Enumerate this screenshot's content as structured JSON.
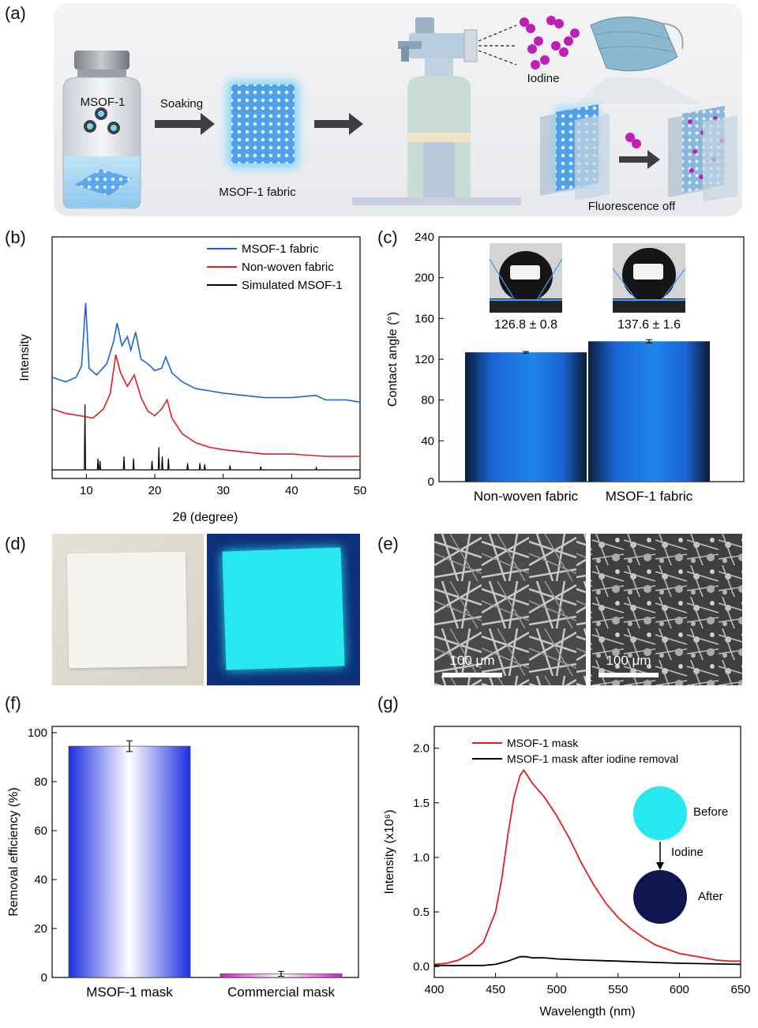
{
  "panel_labels": {
    "a": "(a)",
    "b": "(b)",
    "c": "(c)",
    "d": "(d)",
    "e": "(e)",
    "f": "(f)",
    "g": "(g)"
  },
  "colors": {
    "blue": "#1b64d6",
    "red": "#e02020",
    "black": "#000000",
    "cyan": "#27e8ee",
    "navy": "#0f1650",
    "magenta": "#c01fb5"
  },
  "panel_a": {
    "bottle_label": "MSOF-1",
    "step1": "Soaking",
    "fabric_label": "MSOF-1 fabric",
    "iodine_label": "Iodine",
    "result_label": "Fluorescence off"
  },
  "panel_d": {
    "left_desc": "Non-woven fabric under daylight",
    "right_desc": "MSOF-1 fabric under UV light"
  },
  "panel_e": {
    "scale_left": "100 μm",
    "scale_right": "100 μm"
  },
  "chart_data": [
    {
      "id": "b",
      "type": "line",
      "xlabel": "2θ (degree)",
      "ylabel": "Intensity",
      "xlim": [
        5,
        50
      ],
      "xticks": [
        10,
        20,
        30,
        40,
        50
      ],
      "series": [
        {
          "name": "MSOF-1 fabric",
          "color": "#1b64d6",
          "x": [
            5,
            7,
            8.5,
            9.3,
            9.9,
            10.4,
            11.5,
            13,
            14,
            14.5,
            15.2,
            16,
            16.5,
            17.2,
            18,
            19,
            20,
            21,
            21.6,
            22.5,
            24,
            26,
            28,
            30,
            33,
            36,
            40,
            43.5,
            45,
            48,
            50
          ],
          "y": [
            0.42,
            0.4,
            0.42,
            0.47,
            0.75,
            0.46,
            0.43,
            0.48,
            0.58,
            0.66,
            0.56,
            0.6,
            0.54,
            0.62,
            0.5,
            0.48,
            0.45,
            0.46,
            0.51,
            0.44,
            0.4,
            0.37,
            0.36,
            0.35,
            0.34,
            0.33,
            0.33,
            0.34,
            0.32,
            0.32,
            0.31
          ]
        },
        {
          "name": "Non-woven fabric",
          "color": "#e02020",
          "x": [
            5,
            7,
            9,
            11,
            12.5,
            13.5,
            14.3,
            15,
            16,
            17,
            18,
            19,
            20,
            21,
            21.8,
            22.5,
            24,
            26,
            28,
            30,
            33,
            36,
            40,
            45,
            50
          ],
          "y": [
            0.28,
            0.26,
            0.25,
            0.24,
            0.28,
            0.35,
            0.52,
            0.44,
            0.38,
            0.43,
            0.33,
            0.27,
            0.25,
            0.28,
            0.32,
            0.24,
            0.17,
            0.13,
            0.11,
            0.1,
            0.09,
            0.08,
            0.08,
            0.07,
            0.07
          ]
        }
      ],
      "simulated": {
        "name": "Simulated MSOF-1",
        "color": "#000000",
        "peaks": [
          [
            9.8,
            0.29
          ],
          [
            11.7,
            0.05
          ],
          [
            12.0,
            0.04
          ],
          [
            15.5,
            0.06
          ],
          [
            16.9,
            0.05
          ],
          [
            19.6,
            0.04
          ],
          [
            20.6,
            0.1
          ],
          [
            21.1,
            0.06
          ],
          [
            22.0,
            0.05
          ],
          [
            24.8,
            0.03
          ],
          [
            26.6,
            0.03
          ],
          [
            27.3,
            0.025
          ],
          [
            31.0,
            0.02
          ],
          [
            35.5,
            0.015
          ],
          [
            43.6,
            0.01
          ]
        ]
      },
      "legend": [
        "MSOF-1 fabric",
        "Non-woven fabric",
        "Simulated MSOF-1"
      ]
    },
    {
      "id": "c",
      "type": "bar",
      "ylabel": "Contact angle (°)",
      "ylim": [
        0,
        240
      ],
      "yticks": [
        0,
        40,
        80,
        120,
        160,
        200,
        240
      ],
      "categories": [
        "Non-woven fabric",
        "MSOF-1 fabric"
      ],
      "values": [
        126.8,
        137.6
      ],
      "errors": [
        0.8,
        1.6
      ],
      "annotations": [
        "126.8 ± 0.8",
        "137.6 ± 1.6"
      ]
    },
    {
      "id": "f",
      "type": "bar",
      "ylabel": "Removal efficiency (%)",
      "ylim": [
        0,
        100
      ],
      "yticks": [
        0,
        20,
        40,
        60,
        80,
        100
      ],
      "categories": [
        "MSOF-1 mask",
        "Commercial mask"
      ],
      "values": [
        94.5,
        1.5
      ],
      "errors": [
        2.2,
        1.0
      ]
    },
    {
      "id": "g",
      "type": "line",
      "xlabel": "Wavelength (nm)",
      "ylabel": "Intensity (x10⁶)",
      "xlim": [
        400,
        650
      ],
      "ylim": [
        -0.1,
        2.2
      ],
      "xticks": [
        400,
        450,
        500,
        550,
        600,
        650
      ],
      "yticks": [
        0.0,
        0.5,
        1.0,
        1.5,
        2.0
      ],
      "series": [
        {
          "name": "MSOF-1 mask",
          "color": "#e02020",
          "x": [
            400,
            410,
            420,
            430,
            440,
            450,
            455,
            460,
            465,
            470,
            473,
            480,
            490,
            500,
            510,
            520,
            530,
            540,
            550,
            560,
            570,
            580,
            590,
            600,
            610,
            620,
            630,
            640,
            650
          ],
          "y": [
            0.02,
            0.03,
            0.06,
            0.12,
            0.22,
            0.5,
            0.8,
            1.2,
            1.55,
            1.75,
            1.8,
            1.68,
            1.55,
            1.38,
            1.18,
            0.95,
            0.75,
            0.58,
            0.45,
            0.35,
            0.27,
            0.2,
            0.16,
            0.12,
            0.1,
            0.08,
            0.06,
            0.05,
            0.05
          ]
        },
        {
          "name": "MSOF-1 mask after iodine removal",
          "color": "#000000",
          "x": [
            400,
            420,
            440,
            450,
            460,
            470,
            475,
            480,
            490,
            500,
            520,
            550,
            600,
            650
          ],
          "y": [
            0.01,
            0.01,
            0.01,
            0.02,
            0.05,
            0.09,
            0.09,
            0.08,
            0.08,
            0.07,
            0.06,
            0.05,
            0.03,
            0.02
          ]
        }
      ],
      "legend": [
        "MSOF-1 mask",
        "MSOF-1 mask after iodine removal"
      ],
      "inset": {
        "before": "Before",
        "arrow_label": "Iodine",
        "after": "After"
      }
    }
  ]
}
